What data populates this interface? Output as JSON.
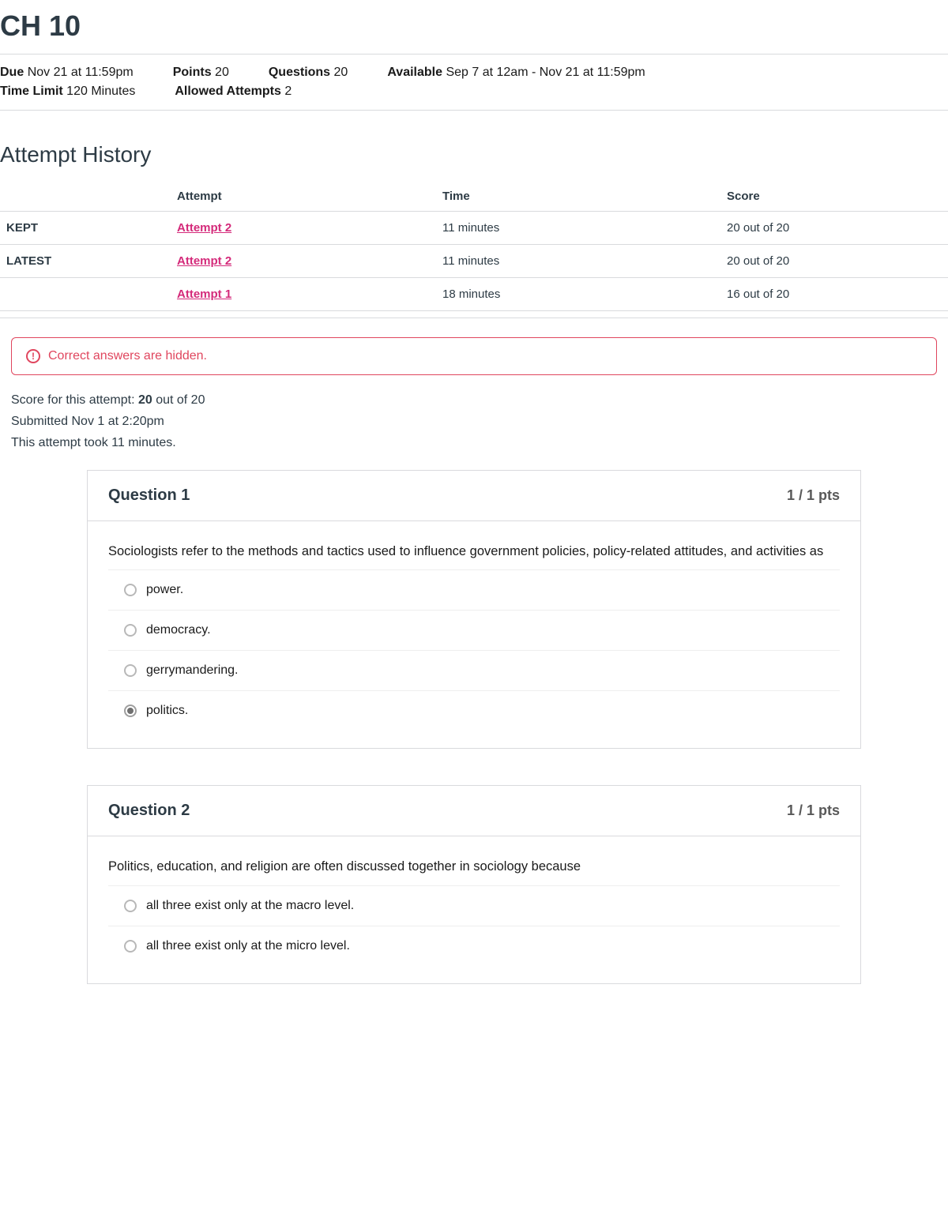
{
  "title": "CH 10",
  "meta": {
    "due_label": "Due",
    "due_value": "Nov 21 at 11:59pm",
    "points_label": "Points",
    "points_value": "20",
    "questions_label": "Questions",
    "questions_value": "20",
    "available_label": "Available",
    "available_value": "Sep 7 at 12am - Nov 21 at 11:59pm",
    "timelimit_label": "Time Limit",
    "timelimit_value": "120 Minutes",
    "allowed_label": "Allowed Attempts",
    "allowed_value": "2"
  },
  "history": {
    "heading": "Attempt History",
    "columns": [
      "",
      "Attempt",
      "Time",
      "Score"
    ],
    "rows": [
      {
        "tag": "KEPT",
        "attempt": "Attempt 2",
        "time": "11 minutes",
        "score": "20 out of 20"
      },
      {
        "tag": "LATEST",
        "attempt": "Attempt 2",
        "time": "11 minutes",
        "score": "20 out of 20"
      },
      {
        "tag": "",
        "attempt": "Attempt 1",
        "time": "18 minutes",
        "score": "16 out of 20"
      }
    ]
  },
  "alert": {
    "icon": "!",
    "text": "Correct answers are hidden."
  },
  "score": {
    "line1_pre": "Score for this attempt: ",
    "line1_bold": "20",
    "line1_post": " out of 20",
    "line2": "Submitted Nov 1 at 2:20pm",
    "line3": "This attempt took 11 minutes."
  },
  "questions": [
    {
      "title": "Question 1",
      "pts": "1 / 1 pts",
      "prompt": "Sociologists refer to the methods and tactics used to influence government policies, policy-related attitudes, and activities as",
      "answers": [
        {
          "text": "power.",
          "selected": false
        },
        {
          "text": "democracy.",
          "selected": false
        },
        {
          "text": "gerrymandering.",
          "selected": false
        },
        {
          "text": "politics.",
          "selected": true
        }
      ]
    },
    {
      "title": "Question 2",
      "pts": "1 / 1 pts",
      "prompt": "Politics, education, and religion are often discussed together in sociology because",
      "answers": [
        {
          "text": "all three exist only at the macro level.",
          "selected": false
        },
        {
          "text": "all three exist only at the micro level.",
          "selected": false
        }
      ]
    }
  ],
  "colors": {
    "link": "#d42a7a",
    "alert": "#e0465e",
    "border": "#d9dadd",
    "text": "#2d3b45"
  }
}
